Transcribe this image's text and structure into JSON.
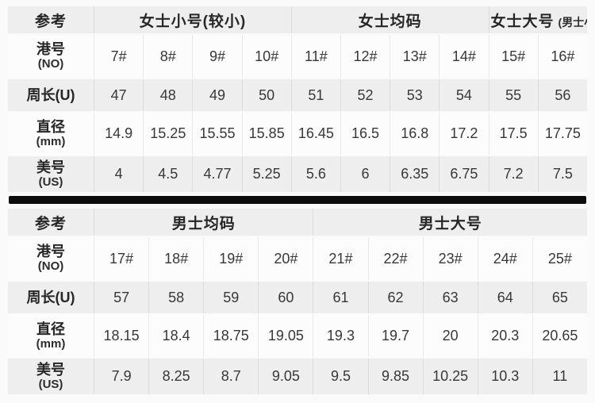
{
  "colors": {
    "page_bg": "#fafafa",
    "row_gray": "#eeeeee",
    "row_white": "#fcfcfc",
    "divider": "#0d0d0d",
    "text": "#2e2e2e"
  },
  "chart_data": [
    {
      "type": "table",
      "name": "women-ring-sizes",
      "ref_label": "参考",
      "groups": [
        {
          "label": "女士小号(较小)",
          "sub": "",
          "span": 4
        },
        {
          "label": "女士均码",
          "sub": "",
          "span": 4
        },
        {
          "label": "女士大号",
          "sub": "(男士小号)",
          "span": 2
        }
      ],
      "rows": [
        {
          "label": "港号",
          "sub": "(NO)",
          "values": [
            "7#",
            "8#",
            "9#",
            "10#",
            "11#",
            "12#",
            "13#",
            "14#",
            "15#",
            "16#"
          ]
        },
        {
          "label": "周长(U)",
          "sub": "",
          "values": [
            "47",
            "48",
            "49",
            "50",
            "51",
            "52",
            "53",
            "54",
            "55",
            "56"
          ]
        },
        {
          "label": "直径",
          "sub": "(mm)",
          "values": [
            "14.9",
            "15.25",
            "15.55",
            "15.85",
            "16.45",
            "16.5",
            "16.8",
            "17.2",
            "17.5",
            "17.75"
          ]
        },
        {
          "label": "美号",
          "sub": "(US)",
          "values": [
            "4",
            "4.5",
            "4.77",
            "5.25",
            "5.6",
            "6",
            "6.35",
            "6.75",
            "7.2",
            "7.5"
          ]
        }
      ]
    },
    {
      "type": "table",
      "name": "men-ring-sizes",
      "ref_label": "参考",
      "groups": [
        {
          "label": "男士均码",
          "sub": "",
          "span": 4
        },
        {
          "label": "男士大号",
          "sub": "",
          "span": 5
        }
      ],
      "rows": [
        {
          "label": "港号",
          "sub": "(NO)",
          "values": [
            "17#",
            "18#",
            "19#",
            "20#",
            "21#",
            "22#",
            "23#",
            "24#",
            "25#"
          ]
        },
        {
          "label": "周长(U)",
          "sub": "",
          "values": [
            "57",
            "58",
            "59",
            "60",
            "61",
            "62",
            "63",
            "64",
            "65"
          ]
        },
        {
          "label": "直径",
          "sub": "(mm)",
          "values": [
            "18.15",
            "18.4",
            "18.75",
            "19.05",
            "19.3",
            "19.7",
            "20",
            "20.3",
            "20.65"
          ]
        },
        {
          "label": "美号",
          "sub": "(US)",
          "values": [
            "7.9",
            "8.25",
            "8.7",
            "9.05",
            "9.5",
            "9.85",
            "10.25",
            "10.3",
            "11"
          ]
        }
      ]
    }
  ]
}
